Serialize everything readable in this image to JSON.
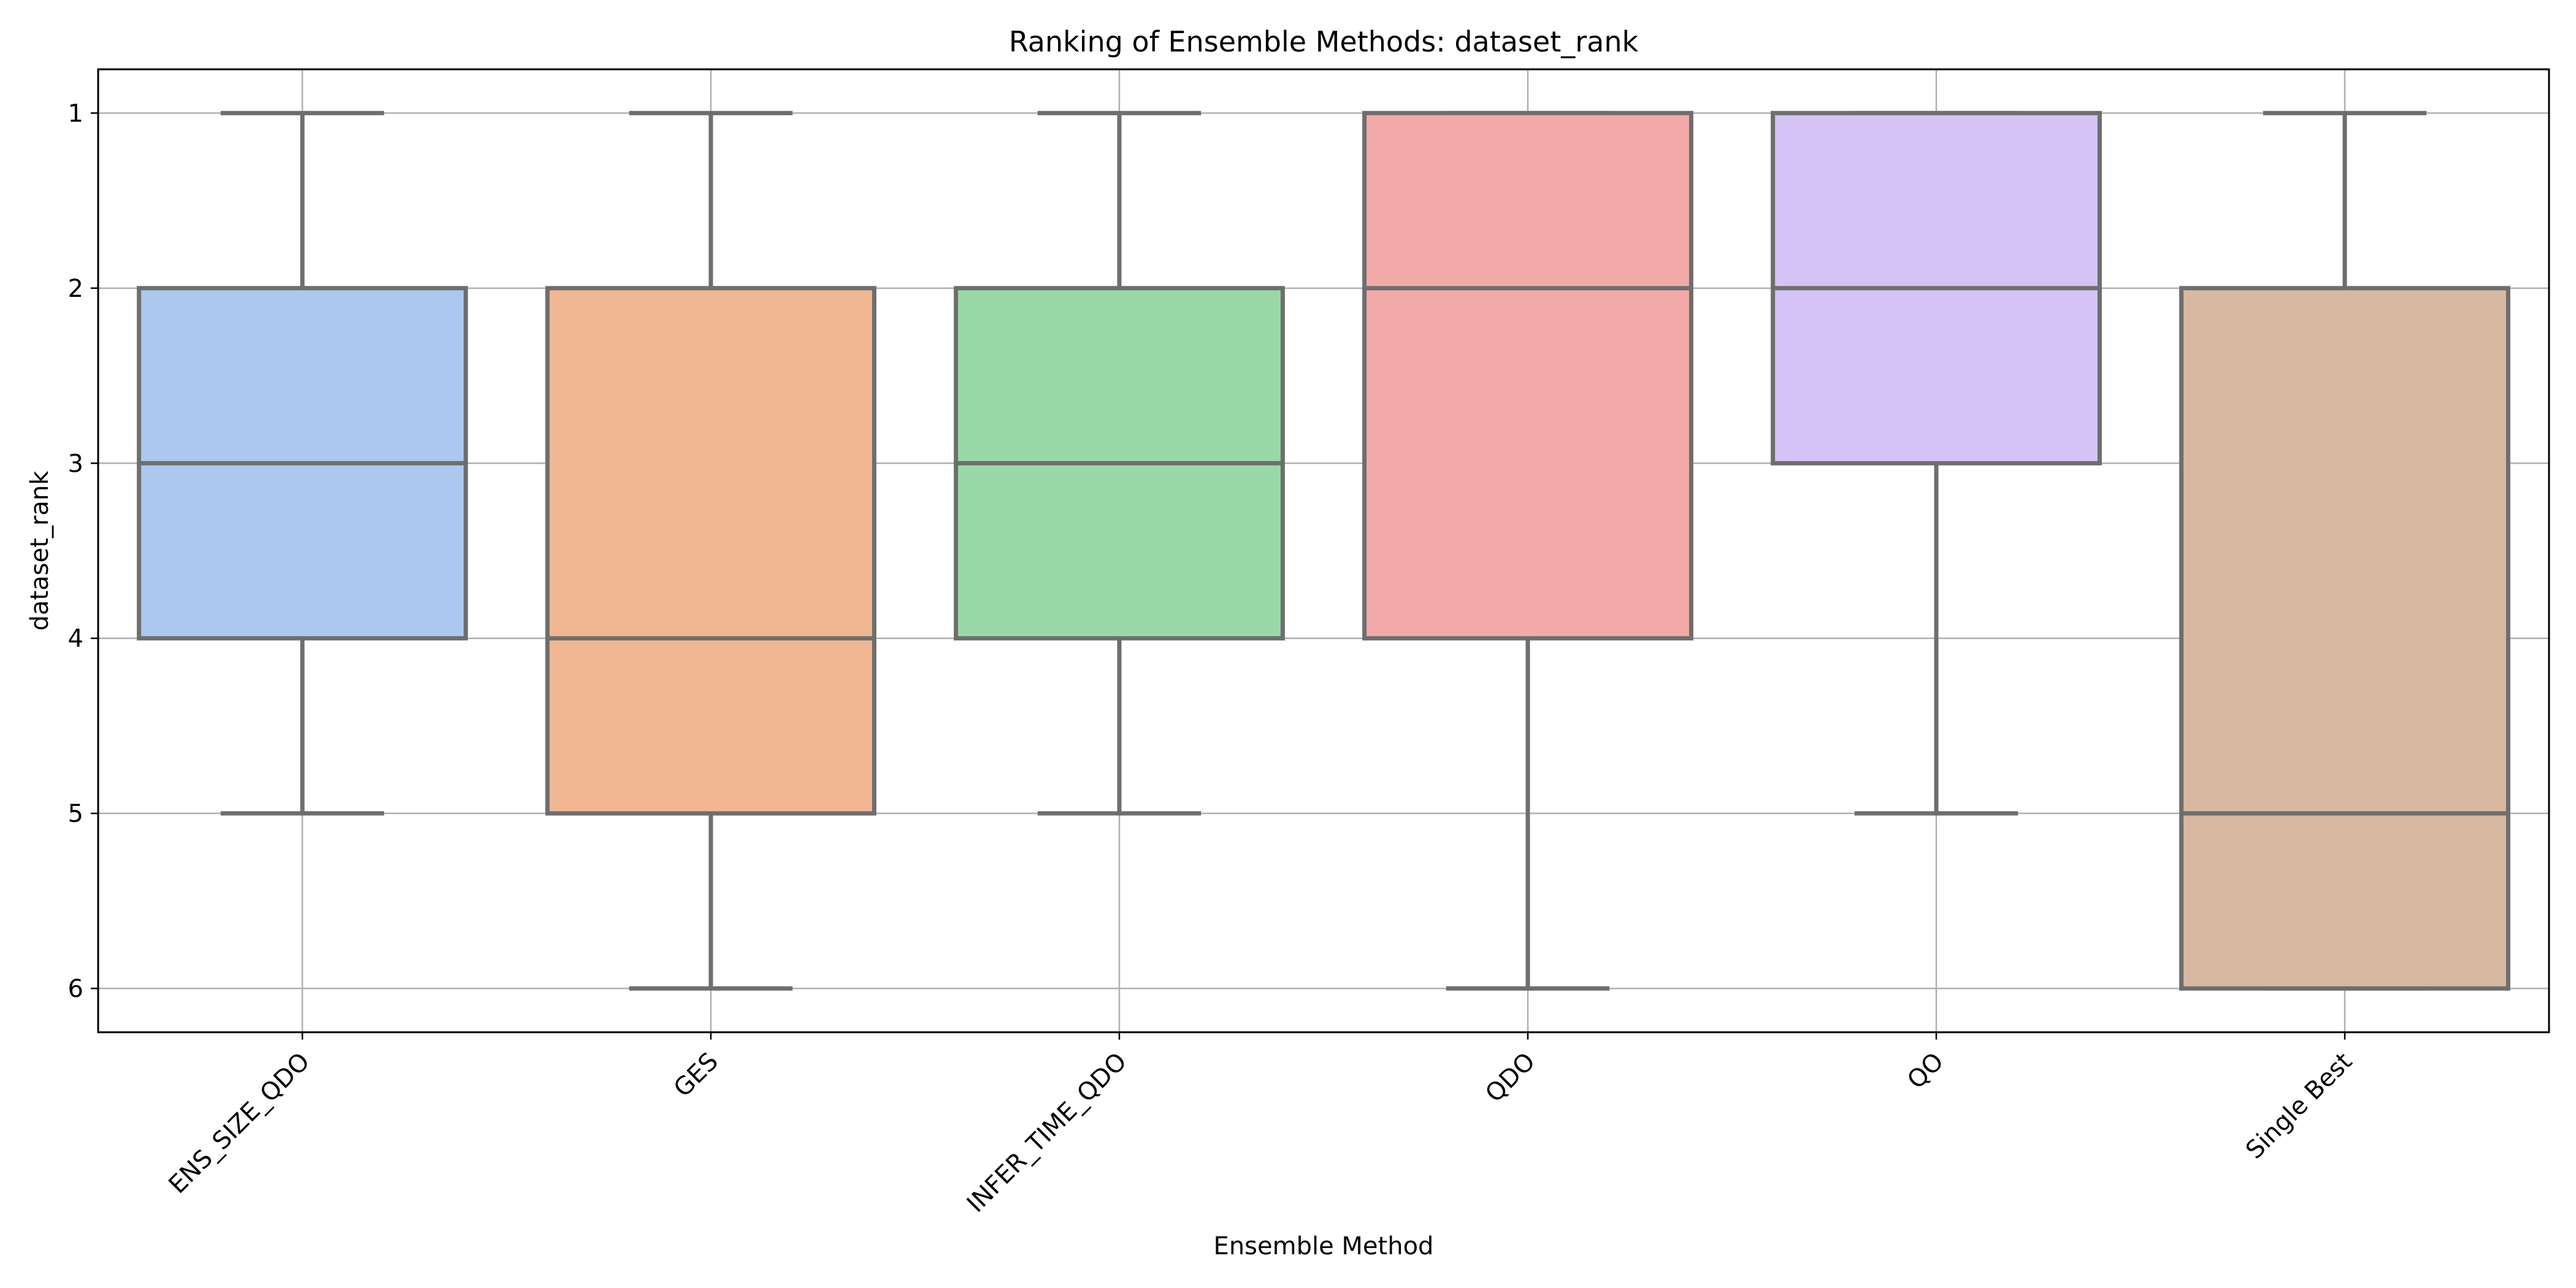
{
  "chart_data": {
    "type": "box",
    "title": "Ranking of Ensemble Methods: dataset_rank",
    "xlabel": "Ensemble Method",
    "ylabel": "dataset_rank",
    "ylim": [
      6.25,
      0.75
    ],
    "y_inverted": true,
    "yticks": [
      1,
      2,
      3,
      4,
      5,
      6
    ],
    "grid": true,
    "categories": [
      "ENS_SIZE_QDO",
      "GES",
      "INFER_TIME_QDO",
      "QDO",
      "QO",
      "Single Best"
    ],
    "boxes": [
      {
        "category": "ENS_SIZE_QDO",
        "whisker_low": 1,
        "q1": 2,
        "median": 3,
        "q3": 4,
        "whisker_high": 5,
        "color": "#abc9ee"
      },
      {
        "category": "GES",
        "whisker_low": 1,
        "q1": 2,
        "median": 4,
        "q3": 5,
        "whisker_high": 6,
        "color": "#f1b793"
      },
      {
        "category": "INFER_TIME_QDO",
        "whisker_low": 1,
        "q1": 2,
        "median": 3,
        "q3": 4,
        "whisker_high": 5,
        "color": "#99d9a7"
      },
      {
        "category": "QDO",
        "whisker_low": 1,
        "q1": 1,
        "median": 2,
        "q3": 4,
        "whisker_high": 6,
        "color": "#f2aaa9"
      },
      {
        "category": "QO",
        "whisker_low": 1,
        "q1": 1,
        "median": 2,
        "q3": 3,
        "whisker_high": 5,
        "color": "#d5c3f6"
      },
      {
        "category": "Single Best",
        "whisker_low": 1,
        "q1": 2,
        "median": 5,
        "q3": 6,
        "whisker_high": 6,
        "color": "#d6b9a0"
      }
    ],
    "box_edge_color": "#6e6e6e"
  }
}
